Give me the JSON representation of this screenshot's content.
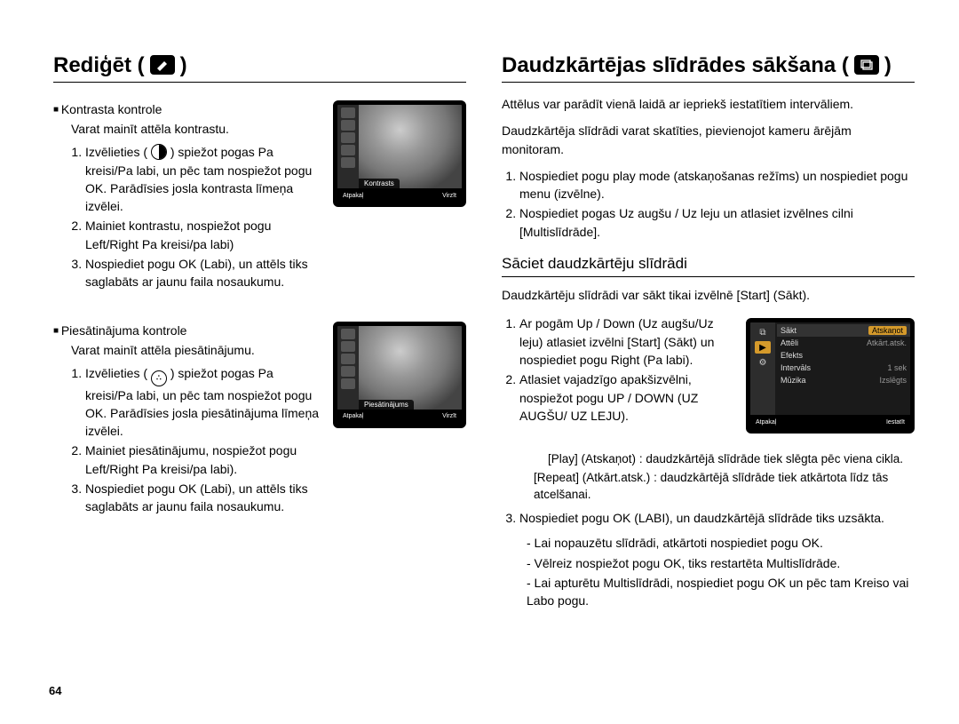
{
  "left": {
    "title": "Rediģēt (",
    "title_end": ")",
    "icon_symbol": "✎",
    "contrast": {
      "heading": "Kontrasta kontrole",
      "intro": "Varat mainīt attēla kontrastu.",
      "step1_a": "Izvēlieties (",
      "step1_b": ") spiežot pogas Pa kreisi/Pa labi, un pēc tam nospiežot pogu OK. Parādīsies josla kontrasta līmeņa izvēlei.",
      "step2": "Mainiet kontrastu, nospiežot pogu Left/Right Pa kreisi/pa labi)",
      "step3": "Nospiediet pogu OK (Labi), un attēls tiks saglabāts ar jaunu faila nosaukumu.",
      "thumb_label": "Kontrasts",
      "thumb_left": "Atpakaļ",
      "thumb_right": "Virzīt"
    },
    "saturation": {
      "heading": "Piesātinājuma kontrole",
      "intro": "Varat mainīt attēla piesātinājumu.",
      "step1_a": "Izvēlieties (",
      "step1_b": ") spiežot pogas Pa kreisi/Pa labi, un pēc tam nospiežot pogu OK. Parādīsies josla piesātinājuma līmeņa izvēlei.",
      "step2": "Mainiet piesātinājumu, nospiežot pogu Left/Right Pa kreisi/pa labi).",
      "step3": "Nospiediet pogu OK (Labi), un attēls tiks saglabāts ar jaunu faila nosaukumu.",
      "thumb_label": "Piesātinājums",
      "thumb_left": "Atpakaļ",
      "thumb_right": "Virzīt"
    }
  },
  "right": {
    "title": "Daudzkārtējas slīdrādes sākšana (",
    "title_end": ")",
    "icon_symbol": "▣",
    "intro1": "Attēlus var parādīt vienā laidā ar iepriekš iestatītiem intervāliem.",
    "intro2": "Daudzkārtēja slīdrādi varat skatīties, pievienojot kameru ārējām monitoram.",
    "step1": "Nospiediet pogu play mode (atskaņošanas režīms) un nospiediet pogu menu (izvēlne).",
    "step2": "Nospiediet pogas Uz augšu / Uz leju un atlasiet izvēlnes cilni [Multislīdrāde].",
    "subsection": "Sāciet daudzkārtēju slīdrādi",
    "sub_intro": "Daudzkārtēju slīdrādi var sākt tikai izvēlnē [Start] (Sākt).",
    "s_step1": "Ar pogām Up / Down (Uz augšu/Uz leju) atlasiet izvēlni [Start] (Sākt) un nospiediet pogu Right (Pa labi).",
    "s_step2": "Atlasiet vajadzīgo apakšizvēlni, nospiežot pogu UP / DOWN (UZ AUGŠU/ UZ LEJU).",
    "play_label": "[Play] (Atskaņot)",
    "play_desc": ": daudzkārtējā slīdrāde tiek slēgta pēc viena cikla.",
    "repeat_label": "[Repeat] (Atkārt.atsk.)",
    "repeat_desc": ": daudzkārtējā slīdrāde tiek atkārtota līdz tās atcelšanai.",
    "s_step3": "Nospiediet pogu OK (LABI), un daudzkārtējā slīdrāde tiks uzsākta.",
    "bullet1": "- Lai nopauzētu slīdrādi, atkārtoti nospiediet pogu OK.",
    "bullet2": "- Vēlreiz nospiežot pogu OK, tiks restartēta Multislīdrāde.",
    "bullet3": "- Lai apturētu Multislīdrādi, nospiediet pogu OK un pēc tam Kreiso vai Labo pogu.",
    "menu": {
      "items": [
        {
          "l": "Sākt",
          "r": "Atskaņot",
          "r_sel": true
        },
        {
          "l": "Attēli",
          "r": "Atkārt.atsk."
        },
        {
          "l": "Efekts",
          "r": ""
        },
        {
          "l": "Intervāls",
          "r": "1 sek"
        },
        {
          "l": "Mūzika",
          "r": "Izslēgts"
        }
      ],
      "bottom_left": "Atpakaļ",
      "bottom_right": "Iestatīt"
    }
  },
  "page_number": "64"
}
